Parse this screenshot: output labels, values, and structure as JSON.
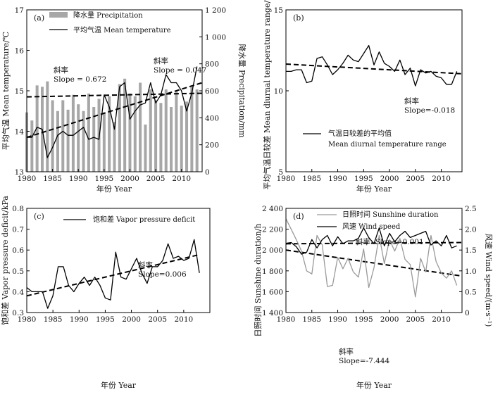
{
  "chart_data": [
    {
      "id": "a",
      "panel_label": "(a)",
      "type": "bar+line",
      "x": [
        1980,
        1981,
        1982,
        1983,
        1984,
        1985,
        1986,
        1987,
        1988,
        1989,
        1990,
        1991,
        1992,
        1993,
        1994,
        1995,
        1996,
        1997,
        1998,
        1999,
        2000,
        2001,
        2002,
        2003,
        2004,
        2005,
        2006,
        2007,
        2008,
        2009,
        2010,
        2011,
        2012,
        2013
      ],
      "xlim": [
        1980,
        2014
      ],
      "xticks": [
        "1980",
        "1985",
        "1990",
        "1995",
        "2000",
        "2005",
        "2010"
      ],
      "xlabel": "年份 Year",
      "ylabel": "平均气温 Mean temperature/℃",
      "ylim": [
        13,
        17
      ],
      "yticks": [
        "13",
        "14",
        "15",
        "16",
        "17"
      ],
      "y2label": "降水量 Precipitation/mm",
      "y2lim": [
        0,
        1200
      ],
      "y2ticks": [
        "0",
        "200",
        "400",
        "600",
        "800",
        "1 000",
        "1 200"
      ],
      "series": [
        {
          "name": "降水量 Precipitation",
          "kind": "bar",
          "axis": "right",
          "values": [
            440,
            380,
            640,
            630,
            670,
            530,
            450,
            530,
            460,
            570,
            500,
            450,
            580,
            480,
            540,
            440,
            560,
            370,
            650,
            690,
            580,
            560,
            660,
            350,
            610,
            530,
            510,
            610,
            480,
            600,
            490,
            520,
            630,
            610
          ]
        },
        {
          "name": "平均气温 Mean temperature",
          "kind": "line",
          "axis": "left",
          "values": [
            13.85,
            13.85,
            14.1,
            14.05,
            13.35,
            13.6,
            13.9,
            14.0,
            13.9,
            13.9,
            14.0,
            14.1,
            13.8,
            13.85,
            13.8,
            14.9,
            14.6,
            14.05,
            15.1,
            15.2,
            14.3,
            14.5,
            14.65,
            14.7,
            15.2,
            14.7,
            14.9,
            15.4,
            15.2,
            15.2,
            15.0,
            14.5,
            14.95,
            15.6
          ]
        }
      ],
      "trends": [
        {
          "name": "precip-trend",
          "axis": "right",
          "from": [
            1980,
            555
          ],
          "to": [
            2014,
            582
          ]
        },
        {
          "name": "temp-trend",
          "axis": "left",
          "from": [
            1980,
            13.85
          ],
          "to": [
            2014,
            15.2
          ]
        }
      ],
      "annotations": [
        {
          "label": "斜率",
          "slope": "Slope = 0.672"
        },
        {
          "label": "斜率",
          "slope": "Slope = 0.047"
        }
      ]
    },
    {
      "id": "b",
      "panel_label": "(b)",
      "type": "line",
      "x": [
        1980,
        1981,
        1982,
        1983,
        1984,
        1985,
        1986,
        1987,
        1988,
        1989,
        1990,
        1991,
        1992,
        1993,
        1994,
        1995,
        1996,
        1997,
        1998,
        1999,
        2000,
        2001,
        2002,
        2003,
        2004,
        2005,
        2006,
        2007,
        2008,
        2009,
        2010,
        2011,
        2012,
        2013
      ],
      "xlim": [
        1980,
        2014
      ],
      "xticks": [
        "1980",
        "1985",
        "1990",
        "1995",
        "2000",
        "2005",
        "2010"
      ],
      "xlabel": "年份 Year",
      "ylabel": "平均气温日较差 Mean diurnal temperature range/℃",
      "ylim": [
        5,
        15
      ],
      "yticks": [
        "5",
        "10",
        "15"
      ],
      "series": [
        {
          "name": "气温日较差的平均值 Mean diurnal temperature range",
          "kind": "line",
          "values": [
            11.2,
            11.2,
            11.3,
            11.3,
            10.5,
            10.6,
            12.0,
            12.1,
            11.6,
            11.0,
            11.3,
            11.7,
            12.2,
            11.9,
            11.8,
            12.3,
            12.8,
            11.6,
            12.4,
            11.7,
            11.5,
            11.2,
            11.9,
            11.0,
            11.4,
            10.3,
            11.3,
            11.1,
            11.2,
            10.9,
            10.8,
            10.4,
            10.4,
            11.2
          ]
        }
      ],
      "trends": [
        {
          "name": "dtr-trend",
          "from": [
            1980,
            11.65
          ],
          "to": [
            2014,
            11.05
          ]
        }
      ],
      "annotations": [
        {
          "label": "斜率",
          "slope": "Slope=-0.018"
        }
      ],
      "legend": {
        "cn": "气温日较差的平均值",
        "en": "Mean diurnal temperature range"
      }
    },
    {
      "id": "c",
      "panel_label": "(c)",
      "type": "line",
      "x": [
        1980,
        1981,
        1982,
        1983,
        1984,
        1985,
        1986,
        1987,
        1988,
        1989,
        1990,
        1991,
        1992,
        1993,
        1994,
        1995,
        1996,
        1997,
        1998,
        1999,
        2000,
        2001,
        2002,
        2003,
        2004,
        2005,
        2006,
        2007,
        2008,
        2009,
        2010,
        2011,
        2012,
        2013
      ],
      "xlim": [
        1980,
        2015
      ],
      "xticks": [
        "1980",
        "1985",
        "1990",
        "1995",
        "2000",
        "2005",
        "2010"
      ],
      "xlabel": "年份 Year",
      "ylabel": "饱和差 Vapor pressure deficit/kPa",
      "ylim": [
        0.3,
        0.8
      ],
      "yticks": [
        "0.3",
        "0.4",
        "0.5",
        "0.6",
        "0.7",
        "0.8"
      ],
      "series": [
        {
          "name": "饱和差 Vapor pressure deficit",
          "kind": "line",
          "values": [
            0.42,
            0.4,
            0.4,
            0.4,
            0.32,
            0.38,
            0.52,
            0.52,
            0.43,
            0.4,
            0.44,
            0.47,
            0.43,
            0.47,
            0.43,
            0.37,
            0.36,
            0.59,
            0.47,
            0.46,
            0.51,
            0.56,
            0.49,
            0.44,
            0.52,
            0.52,
            0.55,
            0.63,
            0.56,
            0.57,
            0.55,
            0.56,
            0.65,
            0.49
          ]
        }
      ],
      "trends": [
        {
          "name": "vpd-trend",
          "from": [
            1980,
            0.38
          ],
          "to": [
            2013,
            0.578
          ]
        }
      ],
      "annotations": [
        {
          "label": "斜率",
          "slope": "Slope=0.006"
        }
      ],
      "legend": {
        "label": "饱和差 Vapor pressure deficit"
      }
    },
    {
      "id": "d",
      "panel_label": "(d)",
      "type": "line",
      "x": [
        1980,
        1981,
        1982,
        1983,
        1984,
        1985,
        1986,
        1987,
        1988,
        1989,
        1990,
        1991,
        1992,
        1993,
        1994,
        1995,
        1996,
        1997,
        1998,
        1999,
        2000,
        2001,
        2002,
        2003,
        2004,
        2005,
        2006,
        2007,
        2008,
        2009,
        2010,
        2011,
        2012,
        2013
      ],
      "xlim": [
        1980,
        2014
      ],
      "xticks": [
        "1980",
        "1985",
        "1990",
        "1995",
        "2000",
        "2005",
        "2010"
      ],
      "xlabel": "年份 Year",
      "ylabel": "日照时间 Sunshine duration/h",
      "ylim": [
        1400,
        2400
      ],
      "yticks": [
        "1 400",
        "1 600",
        "1 800",
        "2 000",
        "2 200",
        "2 400"
      ],
      "y2label": "风速 Wind speed/(m·s⁻¹)",
      "y2lim": [
        0,
        2.5
      ],
      "y2ticks": [
        "0",
        "0.5",
        "1.0",
        "1.5",
        "2.0",
        "2.5"
      ],
      "series": [
        {
          "name": "日照时间 Sunshine duration",
          "kind": "line",
          "axis": "left",
          "color": "#9a9a9a",
          "values": [
            2300,
            2200,
            2100,
            1990,
            1800,
            1770,
            2140,
            2050,
            1650,
            1660,
            1930,
            1820,
            1920,
            1790,
            1740,
            2010,
            1640,
            1830,
            2140,
            1870,
            2100,
            1990,
            2110,
            1910,
            1860,
            1550,
            1920,
            1790,
            2140,
            1890,
            1780,
            1730,
            1800,
            1660
          ]
        },
        {
          "name": "风速 Wind speed",
          "kind": "line",
          "axis": "right",
          "color": "#000000",
          "values": [
            1.66,
            1.68,
            1.58,
            1.4,
            1.45,
            1.75,
            1.55,
            1.75,
            1.85,
            1.6,
            1.82,
            1.65,
            1.72,
            1.72,
            1.78,
            2.03,
            1.8,
            1.65,
            2.03,
            1.6,
            1.9,
            1.7,
            1.85,
            1.95,
            1.8,
            1.85,
            1.9,
            1.95,
            1.62,
            1.72,
            1.6,
            1.85,
            1.55,
            1.6
          ]
        }
      ],
      "trends": [
        {
          "name": "wind-trend",
          "axis": "right",
          "from": [
            1980,
            1.65
          ],
          "to": [
            2014,
            1.68
          ]
        },
        {
          "name": "sunshine-trend",
          "axis": "left",
          "from": [
            1980,
            2000
          ],
          "to": [
            2014,
            1750
          ]
        }
      ],
      "annotations": [
        {
          "label": "斜率",
          "slope": "Slope=0.001"
        },
        {
          "label": "斜率",
          "slope": "Slope=-7.444"
        }
      ],
      "legend": {
        "sunshine": "日照时间 Sunshine duration",
        "wind": "风速 Wind speed"
      }
    }
  ]
}
